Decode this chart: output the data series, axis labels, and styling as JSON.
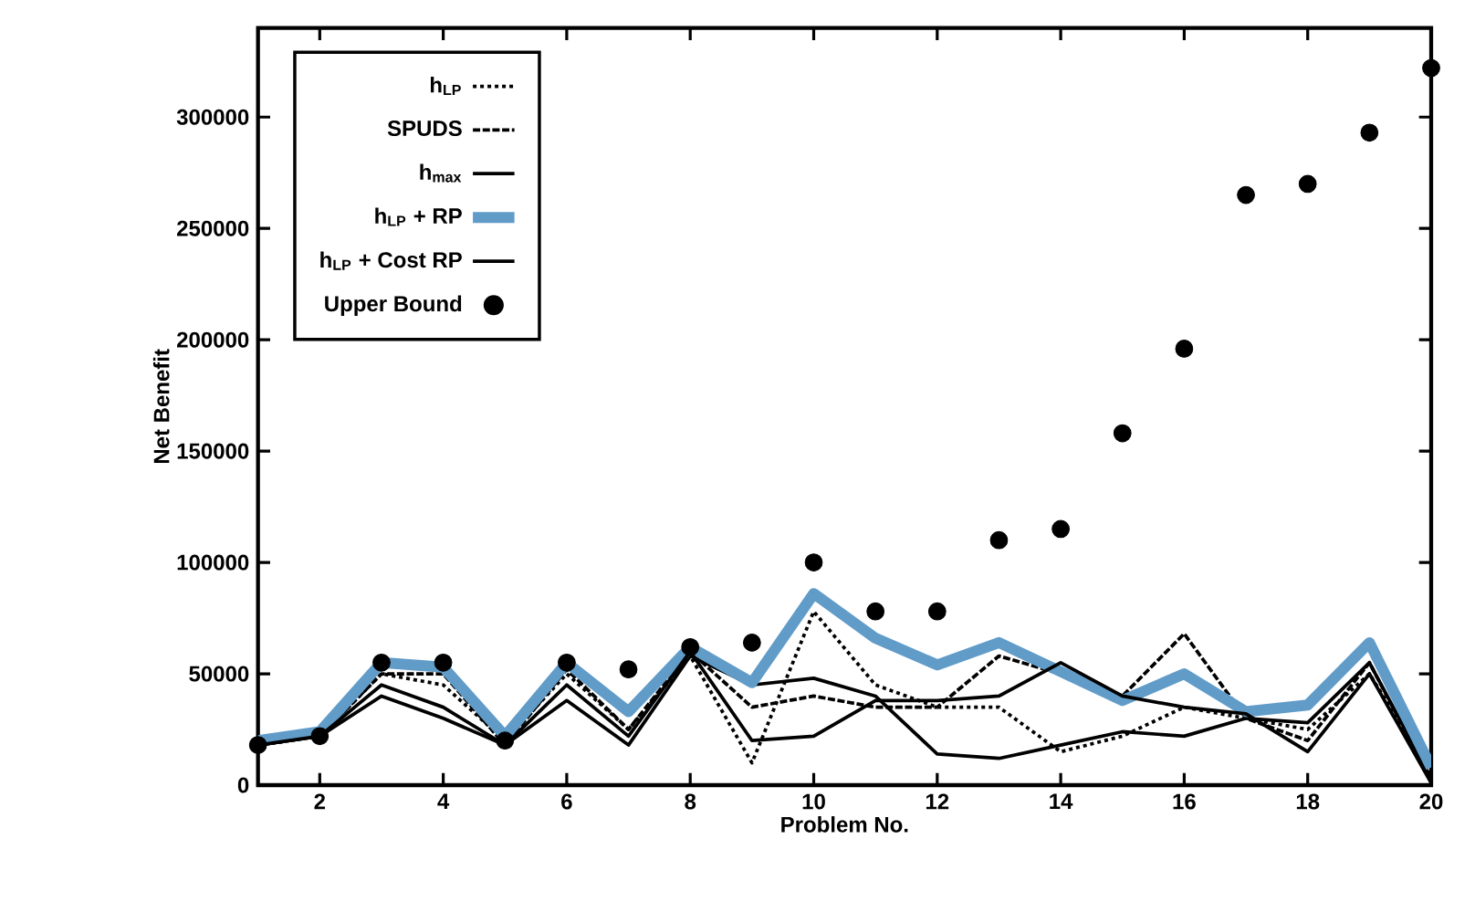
{
  "chart_data": {
    "type": "line",
    "xlabel": "Problem No.",
    "ylabel": "Net Benefit",
    "x": [
      1,
      2,
      3,
      4,
      5,
      6,
      7,
      8,
      9,
      10,
      11,
      12,
      13,
      14,
      15,
      16,
      17,
      18,
      19,
      20
    ],
    "xlim": [
      1,
      20
    ],
    "xticks": [
      2,
      4,
      6,
      8,
      10,
      12,
      14,
      16,
      18,
      20
    ],
    "ylim": [
      0,
      340000
    ],
    "yticks": [
      0,
      50000,
      100000,
      150000,
      200000,
      250000,
      300000
    ],
    "legend": "top left",
    "grid": false,
    "series": [
      {
        "name": "h$_{LP}$",
        "color": "#000000",
        "line_style": "dotted",
        "values": [
          18000,
          22000,
          50000,
          45000,
          20000,
          50000,
          25000,
          58000,
          10000,
          78000,
          45000,
          35000,
          35000,
          15000,
          22000,
          35000,
          30000,
          25000,
          50000,
          5000
        ]
      },
      {
        "name": "SPUDS",
        "color": "#000000",
        "line_style": "dashed",
        "values": [
          18000,
          22000,
          50000,
          50000,
          18000,
          52000,
          25000,
          60000,
          35000,
          40000,
          35000,
          35000,
          58000,
          50000,
          40000,
          68000,
          30000,
          20000,
          55000,
          2000
        ]
      },
      {
        "name": "h$_{max}$",
        "color": "#000000",
        "line_style": "solid",
        "values": [
          18000,
          22000,
          40000,
          30000,
          18000,
          38000,
          18000,
          58000,
          45000,
          48000,
          40000,
          14000,
          12000,
          18000,
          24000,
          22000,
          30000,
          28000,
          55000,
          3000
        ]
      },
      {
        "name": "h$_{LP}$ + RP",
        "color": "#619cc9",
        "line_style": "solid",
        "values": [
          20000,
          24000,
          55000,
          53000,
          22000,
          55000,
          33000,
          62000,
          46000,
          86000,
          66000,
          54000,
          64000,
          51000,
          38000,
          50000,
          33000,
          36000,
          64000,
          8000
        ]
      },
      {
        "name": "h$_{LP}$ + Cost RP",
        "color": "#000000",
        "line_style": "solid",
        "values": [
          18000,
          22000,
          45000,
          35000,
          18000,
          45000,
          22000,
          60000,
          20000,
          22000,
          38000,
          38000,
          40000,
          55000,
          40000,
          35000,
          32000,
          15000,
          50000,
          1000
        ]
      },
      {
        "name": "Upper Bound",
        "type": "scatter",
        "marker": "circle",
        "color": "#000000",
        "values": [
          18000,
          22000,
          55000,
          55000,
          20000,
          55000,
          52000,
          62000,
          64000,
          100000,
          78000,
          78000,
          110000,
          115000,
          158000,
          196000,
          265000,
          270000,
          293000,
          322000
        ]
      }
    ]
  }
}
